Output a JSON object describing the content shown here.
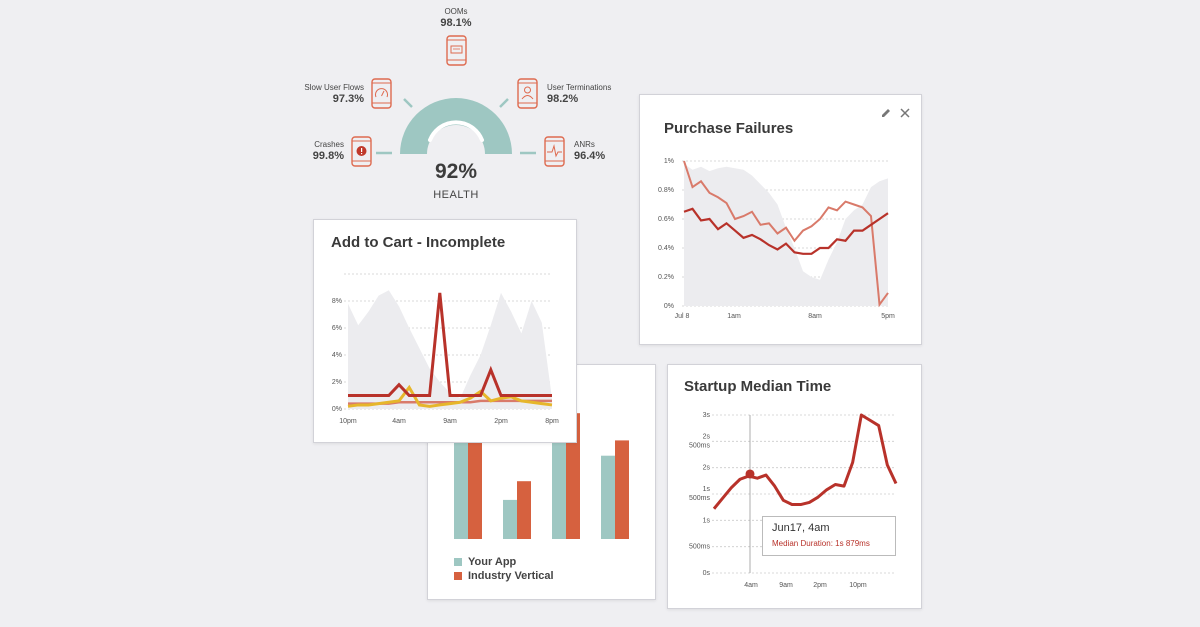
{
  "colors": {
    "accent_red": "#b8322a",
    "light_red": "#d97a6a",
    "teal": "#9ec7c2",
    "orange": "#d6613f",
    "yellow": "#e6b62b",
    "gray_fill": "#ececef",
    "icon_orange": "#de6a4f"
  },
  "health": {
    "value": "92%",
    "label": "HEALTH",
    "metrics": [
      {
        "name": "OOMs",
        "value": "98.1%",
        "icon": "phone-keyboard-icon"
      },
      {
        "name": "Slow User Flows",
        "value": "97.3%",
        "icon": "phone-speedometer-icon"
      },
      {
        "name": "User Terminations",
        "value": "98.2%",
        "icon": "phone-user-icon"
      },
      {
        "name": "Crashes",
        "value": "99.8%",
        "icon": "phone-alert-icon"
      },
      {
        "name": "ANRs",
        "value": "96.4%",
        "icon": "phone-pulse-icon"
      }
    ]
  },
  "purchase_failures": {
    "title": "Purchase Failures",
    "icons": [
      "pencil-icon",
      "close-icon"
    ]
  },
  "add_to_cart": {
    "title": "Add to Cart - Incomplete"
  },
  "startup": {
    "title": "Startup Median Time",
    "tooltip": {
      "title": "Jun17, 4am",
      "detail": "Median Duration: 1s 879ms"
    }
  },
  "bar_legend": {
    "your_app": "Your App",
    "industry": "Industry Vertical"
  },
  "chart_data": [
    {
      "type": "line",
      "title": "Purchase Failures",
      "x_ticks": [
        "Jul 8",
        "1am",
        "8am",
        "5pm"
      ],
      "y_ticks": [
        "0%",
        "0.2%",
        "0.4%",
        "0.6%",
        "0.8%",
        "1%"
      ],
      "ylim": [
        0,
        1
      ],
      "grid": true,
      "x": [
        0,
        1,
        2,
        3,
        4,
        5,
        6,
        7,
        8,
        9,
        10,
        11,
        12,
        13,
        14,
        15,
        16,
        17,
        18,
        19,
        20,
        21,
        22,
        23,
        24
      ],
      "series": [
        {
          "values": [
            0.65,
            0.67,
            0.59,
            0.6,
            0.53,
            0.57,
            0.52,
            0.47,
            0.49,
            0.46,
            0.42,
            0.39,
            0.43,
            0.37,
            0.36,
            0.36,
            0.4,
            0.4,
            0.46,
            0.45,
            0.52,
            0.52,
            0.56,
            0.6,
            0.64
          ]
        },
        {
          "values": [
            1.0,
            0.82,
            0.86,
            0.78,
            0.75,
            0.71,
            0.6,
            0.62,
            0.65,
            0.56,
            0.57,
            0.5,
            0.54,
            0.45,
            0.52,
            0.55,
            0.6,
            0.68,
            0.66,
            0.72,
            0.7,
            0.68,
            0.62,
            0.01,
            0.09
          ]
        },
        {
          "values": [
            0.98,
            0.94,
            0.96,
            0.93,
            0.95,
            0.96,
            0.95,
            0.94,
            0.9,
            0.84,
            0.78,
            0.7,
            0.54,
            0.4,
            0.24,
            0.2,
            0.18,
            0.32,
            0.44,
            0.6,
            0.66,
            0.7,
            0.82,
            0.86,
            0.88
          ]
        }
      ]
    },
    {
      "type": "line",
      "title": "Add to Cart - Incomplete",
      "x_ticks": [
        "10pm",
        "4am",
        "9am",
        "2pm",
        "8pm"
      ],
      "y_ticks": [
        "0%",
        "2%",
        "4%",
        "6%",
        "8%"
      ],
      "ylim": [
        0,
        10
      ],
      "grid": true,
      "x": [
        0,
        1,
        2,
        3,
        4,
        5,
        6,
        7,
        8,
        9,
        10,
        11,
        12,
        13,
        14,
        15,
        16,
        17,
        18,
        19,
        20
      ],
      "series": [
        {
          "values": [
            1,
            1,
            1,
            1,
            1,
            1.8,
            1,
            1,
            1,
            8.6,
            1,
            1,
            1,
            1,
            2.9,
            1,
            1,
            1,
            1,
            1,
            1
          ]
        },
        {
          "values": [
            0.2,
            0.3,
            0.3,
            0.4,
            0.5,
            0.6,
            1.6,
            0.3,
            0.2,
            0.3,
            0.4,
            0.5,
            0.8,
            1.3,
            0.6,
            0.8,
            0.9,
            0.6,
            0.5,
            0.4,
            0.3
          ]
        },
        {
          "values": [
            0.4,
            0.4,
            0.4,
            0.4,
            0.4,
            0.5,
            0.5,
            0.5,
            0.5,
            0.5,
            0.5,
            0.5,
            0.5,
            0.6,
            0.6,
            0.6,
            0.6,
            0.6,
            0.6,
            0.6,
            0.6
          ]
        },
        {
          "values": [
            7.8,
            6.2,
            7.2,
            8.4,
            8.8,
            7.6,
            6,
            4.5,
            3,
            2,
            1.2,
            0.8,
            2.5,
            4,
            6.2,
            8.6,
            7.2,
            5.6,
            8,
            6.4,
            0.8
          ]
        }
      ]
    },
    {
      "type": "bar",
      "series": [
        {
          "name": "Your App",
          "values": [
            6.2,
            2.3,
            6.8,
            4.9
          ]
        },
        {
          "name": "Industry Vertical",
          "values": [
            7.8,
            3.4,
            7.4,
            5.8
          ]
        }
      ],
      "ylim": [
        0,
        8
      ]
    },
    {
      "type": "line",
      "title": "Startup Median Time",
      "x_ticks": [
        "4am",
        "9am",
        "2pm",
        "10pm"
      ],
      "y_ticks": [
        "0s",
        "500ms",
        "1s",
        "1s 500ms",
        "2s",
        "2s 500ms",
        "3s"
      ],
      "ylim": [
        0,
        3
      ],
      "grid": true,
      "series": [
        {
          "values": [
            1.22,
            1.42,
            1.62,
            1.78,
            1.84,
            1.8,
            1.86,
            1.65,
            1.38,
            1.3,
            1.3,
            1.34,
            1.44,
            1.58,
            1.68,
            1.65,
            2.1,
            3.0,
            2.9,
            2.8,
            2.05,
            1.7
          ]
        }
      ],
      "highlight": {
        "label": "Jun17, 4am",
        "value": 1.88
      }
    }
  ]
}
